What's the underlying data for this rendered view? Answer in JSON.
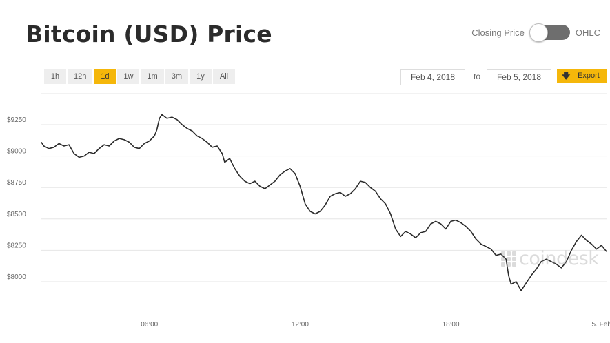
{
  "header": {
    "title": "Bitcoin (USD) Price",
    "toggle_left_label": "Closing Price",
    "toggle_right_label": "OHLC"
  },
  "range_buttons": [
    "1h",
    "12h",
    "1d",
    "1w",
    "1m",
    "3m",
    "1y",
    "All"
  ],
  "active_range": "1d",
  "date_range": {
    "from": "Feb 4, 2018",
    "to_label": "to",
    "to": "Feb 5, 2018"
  },
  "export": {
    "label": "Export",
    "icon": "download-arrow-icon"
  },
  "watermark": {
    "text": "coindesk"
  },
  "colors": {
    "accent": "#f5b70a",
    "line": "#2b2b2b",
    "grid": "#e6e6e6"
  },
  "chart_data": {
    "type": "line",
    "title": "Bitcoin (USD) Price",
    "xlabel": "",
    "ylabel": "",
    "x_domain_hours": [
      1.7,
      24.2
    ],
    "ylim": [
      7800,
      9500
    ],
    "y_ticks": [
      {
        "value": 8000,
        "label": "$8000"
      },
      {
        "value": 8250,
        "label": "$8250"
      },
      {
        "value": 8500,
        "label": "$8500"
      },
      {
        "value": 8750,
        "label": "$8750"
      },
      {
        "value": 9000,
        "label": "$9000"
      },
      {
        "value": 9250,
        "label": "$9250"
      }
    ],
    "x_ticks": [
      {
        "hour": 6,
        "label": "06:00"
      },
      {
        "hour": 12,
        "label": "12:00"
      },
      {
        "hour": 18,
        "label": "18:00"
      },
      {
        "hour": 24,
        "label": "5. Feb"
      }
    ],
    "grid": true,
    "series": [
      {
        "points": [
          [
            1.7,
            9110
          ],
          [
            1.8,
            9080
          ],
          [
            2.0,
            9060
          ],
          [
            2.2,
            9070
          ],
          [
            2.4,
            9100
          ],
          [
            2.6,
            9080
          ],
          [
            2.8,
            9090
          ],
          [
            3.0,
            9020
          ],
          [
            3.2,
            8990
          ],
          [
            3.4,
            9000
          ],
          [
            3.6,
            9030
          ],
          [
            3.8,
            9020
          ],
          [
            4.0,
            9060
          ],
          [
            4.2,
            9090
          ],
          [
            4.4,
            9080
          ],
          [
            4.6,
            9120
          ],
          [
            4.8,
            9140
          ],
          [
            5.0,
            9130
          ],
          [
            5.2,
            9110
          ],
          [
            5.4,
            9070
          ],
          [
            5.6,
            9060
          ],
          [
            5.8,
            9100
          ],
          [
            6.0,
            9120
          ],
          [
            6.2,
            9160
          ],
          [
            6.3,
            9210
          ],
          [
            6.4,
            9300
          ],
          [
            6.5,
            9330
          ],
          [
            6.7,
            9300
          ],
          [
            6.9,
            9310
          ],
          [
            7.1,
            9290
          ],
          [
            7.3,
            9250
          ],
          [
            7.5,
            9220
          ],
          [
            7.7,
            9200
          ],
          [
            7.9,
            9160
          ],
          [
            8.1,
            9140
          ],
          [
            8.3,
            9110
          ],
          [
            8.5,
            9070
          ],
          [
            8.7,
            9080
          ],
          [
            8.9,
            9020
          ],
          [
            9.0,
            8950
          ],
          [
            9.2,
            8980
          ],
          [
            9.4,
            8900
          ],
          [
            9.6,
            8840
          ],
          [
            9.8,
            8800
          ],
          [
            10.0,
            8780
          ],
          [
            10.2,
            8800
          ],
          [
            10.4,
            8760
          ],
          [
            10.6,
            8740
          ],
          [
            10.8,
            8770
          ],
          [
            11.0,
            8800
          ],
          [
            11.2,
            8850
          ],
          [
            11.4,
            8880
          ],
          [
            11.6,
            8900
          ],
          [
            11.8,
            8860
          ],
          [
            12.0,
            8760
          ],
          [
            12.2,
            8620
          ],
          [
            12.4,
            8560
          ],
          [
            12.6,
            8540
          ],
          [
            12.8,
            8560
          ],
          [
            13.0,
            8610
          ],
          [
            13.2,
            8680
          ],
          [
            13.4,
            8700
          ],
          [
            13.6,
            8710
          ],
          [
            13.8,
            8680
          ],
          [
            14.0,
            8700
          ],
          [
            14.2,
            8740
          ],
          [
            14.4,
            8800
          ],
          [
            14.6,
            8790
          ],
          [
            14.8,
            8750
          ],
          [
            15.0,
            8720
          ],
          [
            15.2,
            8660
          ],
          [
            15.4,
            8620
          ],
          [
            15.6,
            8540
          ],
          [
            15.8,
            8420
          ],
          [
            16.0,
            8360
          ],
          [
            16.2,
            8400
          ],
          [
            16.4,
            8380
          ],
          [
            16.6,
            8350
          ],
          [
            16.8,
            8390
          ],
          [
            17.0,
            8400
          ],
          [
            17.2,
            8460
          ],
          [
            17.4,
            8480
          ],
          [
            17.6,
            8460
          ],
          [
            17.8,
            8420
          ],
          [
            18.0,
            8480
          ],
          [
            18.2,
            8490
          ],
          [
            18.4,
            8470
          ],
          [
            18.6,
            8440
          ],
          [
            18.8,
            8400
          ],
          [
            19.0,
            8340
          ],
          [
            19.2,
            8300
          ],
          [
            19.4,
            8280
          ],
          [
            19.6,
            8260
          ],
          [
            19.8,
            8210
          ],
          [
            20.0,
            8220
          ],
          [
            20.2,
            8180
          ],
          [
            20.3,
            8050
          ],
          [
            20.4,
            7980
          ],
          [
            20.6,
            8000
          ],
          [
            20.8,
            7930
          ],
          [
            21.0,
            7990
          ],
          [
            21.2,
            8050
          ],
          [
            21.4,
            8100
          ],
          [
            21.6,
            8160
          ],
          [
            21.8,
            8180
          ],
          [
            22.0,
            8160
          ],
          [
            22.2,
            8140
          ],
          [
            22.4,
            8110
          ],
          [
            22.6,
            8160
          ],
          [
            22.8,
            8250
          ],
          [
            23.0,
            8320
          ],
          [
            23.2,
            8370
          ],
          [
            23.4,
            8330
          ],
          [
            23.6,
            8300
          ],
          [
            23.8,
            8260
          ],
          [
            24.0,
            8290
          ],
          [
            24.2,
            8240
          ]
        ]
      }
    ]
  }
}
